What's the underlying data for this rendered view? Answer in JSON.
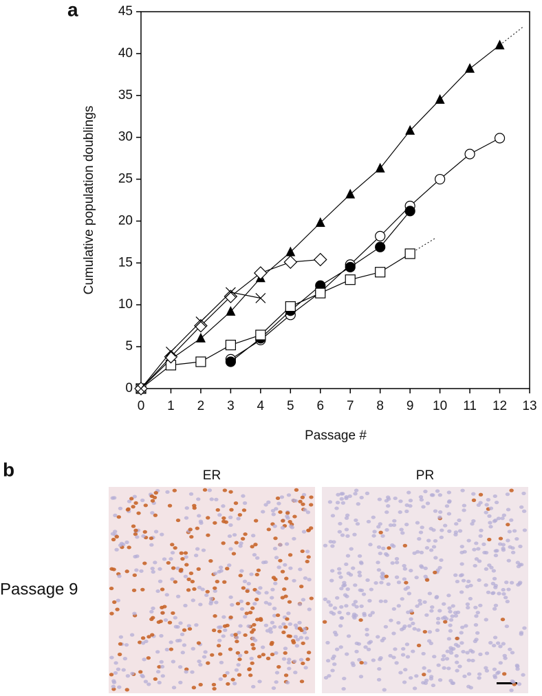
{
  "panels": {
    "a": "a",
    "b": "b"
  },
  "chart_data": {
    "type": "line",
    "x_label": "Passage #",
    "y_label": "Cumulative population doublings",
    "xlim": [
      0,
      13
    ],
    "ylim": [
      0,
      45
    ],
    "xticks": [
      0,
      1,
      2,
      3,
      4,
      5,
      6,
      7,
      8,
      9,
      10,
      11,
      12,
      13
    ],
    "yticks": [
      0,
      5,
      10,
      15,
      20,
      25,
      30,
      35,
      40,
      45
    ],
    "series": [
      {
        "marker": "triangle-filled",
        "color": "#000",
        "dotted_tail": true,
        "x": [
          0,
          1,
          2,
          3,
          4,
          5,
          6,
          7,
          8,
          9,
          10,
          11,
          12
        ],
        "values": [
          0,
          3.5,
          6,
          9.2,
          13.2,
          16.3,
          19.8,
          23.2,
          26.3,
          30.8,
          34.5,
          38.2,
          41
        ]
      },
      {
        "marker": "circle-open",
        "color": "#000",
        "dotted_tail": false,
        "x": [
          3,
          4,
          5,
          6,
          7,
          8,
          9,
          10,
          11,
          12
        ],
        "values": [
          3.5,
          5.8,
          8.8,
          11.5,
          14.8,
          18.2,
          21.8,
          25,
          28,
          29.9
        ]
      },
      {
        "marker": "circle-filled",
        "color": "#000",
        "dotted_tail": false,
        "x": [
          3,
          4,
          5,
          6,
          7,
          8,
          9
        ],
        "values": [
          3.2,
          6,
          9.3,
          12.3,
          14.5,
          16.9,
          21.2
        ]
      },
      {
        "marker": "square-open",
        "color": "#000",
        "dotted_tail": true,
        "x": [
          0,
          1,
          2,
          3,
          4,
          5,
          6,
          7,
          8,
          9
        ],
        "values": [
          0,
          2.8,
          3.2,
          5.2,
          6.4,
          9.8,
          11.4,
          13,
          13.9,
          16.1
        ]
      },
      {
        "marker": "diamond-open",
        "color": "#000",
        "dotted_tail": false,
        "x": [
          0,
          1,
          2,
          3,
          4,
          5,
          6
        ],
        "values": [
          0,
          3.8,
          7.5,
          11,
          13.8,
          15.1,
          15.4
        ]
      },
      {
        "marker": "x",
        "color": "#000",
        "dotted_tail": false,
        "x": [
          0,
          1,
          2,
          3,
          4
        ],
        "values": [
          0,
          4.4,
          8,
          11.5,
          10.8
        ]
      }
    ]
  },
  "images": {
    "left_title": "ER",
    "right_title": "PR",
    "row_label": "Passage 9"
  }
}
